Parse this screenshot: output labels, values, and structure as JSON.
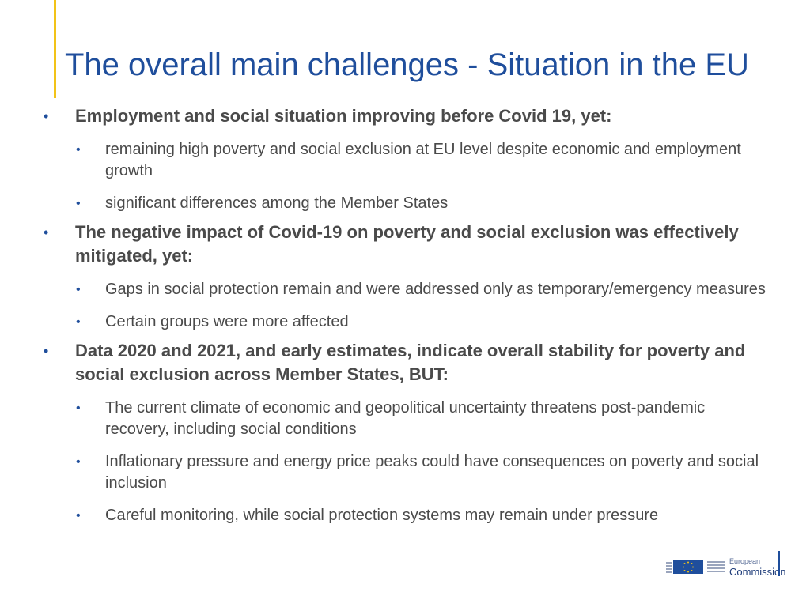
{
  "title": "The overall main challenges - Situation in the EU",
  "bullet_char": "•",
  "sections": [
    {
      "heading": "Employment and social situation improving before Covid 19, yet:",
      "items": [
        "remaining high poverty and social exclusion at EU level despite economic and employment growth",
        "significant differences among the Member States"
      ]
    },
    {
      "heading": "The negative impact of Covid-19 on poverty and social exclusion was effectively mitigated, yet:",
      "items": [
        "Gaps in social protection remain and were addressed only as temporary/emergency measures",
        "Certain groups were more affected"
      ]
    },
    {
      "heading": "Data 2020 and 2021, and early estimates, indicate overall stability for poverty and social exclusion across Member States, BUT:",
      "items": [
        "The current climate of economic and geopolitical uncertainty threatens post-pandemic recovery, including social conditions",
        "Inflationary pressure and energy price peaks could have consequences on poverty and social inclusion",
        "Careful monitoring, while social protection systems may remain under pressure"
      ]
    }
  ],
  "logo": {
    "line1": "European",
    "line2": "Commission"
  },
  "colors": {
    "title": "#1f4e9c",
    "accent": "#f2c318",
    "text": "#4a4a4a"
  }
}
